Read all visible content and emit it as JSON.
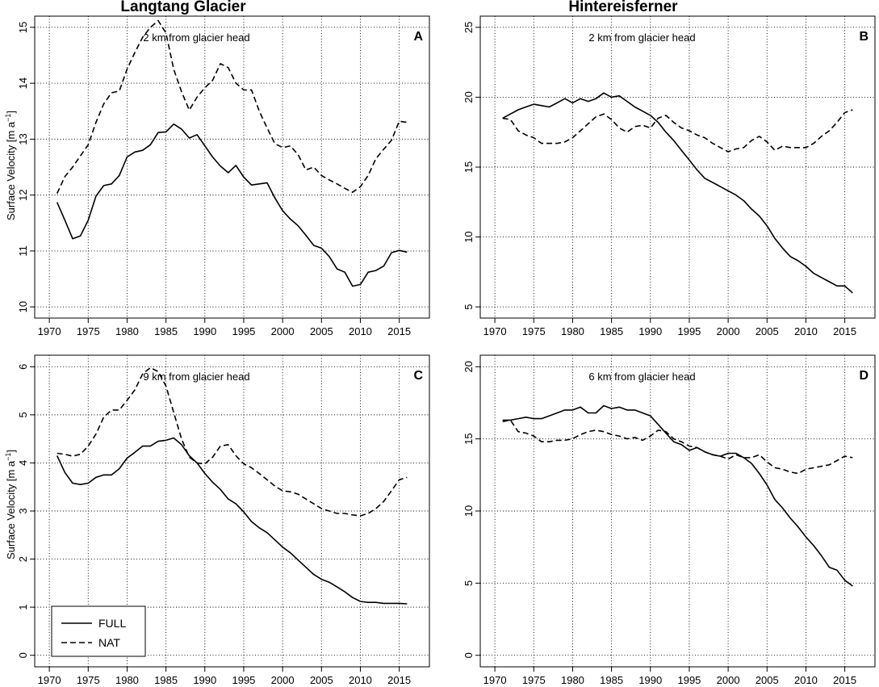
{
  "figure": {
    "column_titles": [
      "Langtang Glacier",
      "Hintereisferner"
    ],
    "ylabel_main": "Surface Velocity [m a",
    "ylabel_sup": "−1",
    "ylabel_end": "]"
  },
  "legend": {
    "entries": [
      "FULL",
      "NAT"
    ]
  },
  "chart_data": [
    {
      "type": "line",
      "panel": "A",
      "annotation": "2 km from glacier head",
      "xlim": [
        1970,
        2017
      ],
      "ylim": [
        10,
        15
      ],
      "xticks": [
        1970,
        1975,
        1980,
        1985,
        1990,
        1995,
        2000,
        2005,
        2010,
        2015
      ],
      "yticks": [
        10,
        11,
        12,
        13,
        14,
        15
      ],
      "grid": true,
      "x": [
        1971,
        1972,
        1973,
        1974,
        1975,
        1976,
        1977,
        1978,
        1979,
        1980,
        1981,
        1982,
        1983,
        1984,
        1985,
        1986,
        1987,
        1988,
        1989,
        1990,
        1991,
        1992,
        1993,
        1994,
        1995,
        1996,
        1997,
        1998,
        1999,
        2000,
        2001,
        2002,
        2003,
        2004,
        2005,
        2006,
        2007,
        2008,
        2009,
        2010,
        2011,
        2012,
        2013,
        2014,
        2015,
        2016
      ],
      "series": [
        {
          "name": "FULL",
          "dash": "solid",
          "values": [
            11.87,
            11.55,
            11.22,
            11.27,
            11.55,
            11.98,
            12.17,
            12.2,
            12.35,
            12.68,
            12.77,
            12.8,
            12.9,
            13.12,
            13.13,
            13.27,
            13.18,
            13.02,
            13.08,
            12.88,
            12.68,
            12.52,
            12.4,
            12.53,
            12.32,
            12.18,
            12.2,
            12.22,
            11.95,
            11.72,
            11.57,
            11.45,
            11.28,
            11.1,
            11.05,
            10.9,
            10.68,
            10.62,
            10.37,
            10.4,
            10.62,
            10.65,
            10.73,
            10.97,
            11.01,
            10.98
          ]
        },
        {
          "name": "NAT",
          "dash": "dashed",
          "values": [
            12.03,
            12.33,
            12.5,
            12.7,
            12.9,
            13.3,
            13.63,
            13.83,
            13.86,
            14.25,
            14.55,
            14.82,
            15.0,
            15.12,
            14.9,
            14.25,
            13.85,
            13.52,
            13.75,
            13.92,
            14.05,
            14.35,
            14.28,
            14.0,
            13.88,
            13.88,
            13.5,
            13.2,
            12.92,
            12.85,
            12.88,
            12.72,
            12.45,
            12.5,
            12.35,
            12.27,
            12.2,
            12.12,
            12.05,
            12.15,
            12.35,
            12.65,
            12.82,
            12.98,
            13.32,
            13.3
          ]
        }
      ]
    },
    {
      "type": "line",
      "panel": "B",
      "annotation": "2 km from glacier head",
      "xlim": [
        1970,
        2017
      ],
      "ylim": [
        5,
        25
      ],
      "xticks": [
        1970,
        1975,
        1980,
        1985,
        1990,
        1995,
        2000,
        2005,
        2010,
        2015
      ],
      "yticks": [
        5,
        10,
        15,
        20,
        25
      ],
      "grid": true,
      "x": [
        1971,
        1972,
        1973,
        1974,
        1975,
        1976,
        1977,
        1978,
        1979,
        1980,
        1981,
        1982,
        1983,
        1984,
        1985,
        1986,
        1987,
        1988,
        1989,
        1990,
        1991,
        1992,
        1993,
        1994,
        1995,
        1996,
        1997,
        1998,
        1999,
        2000,
        2001,
        2002,
        2003,
        2004,
        2005,
        2006,
        2007,
        2008,
        2009,
        2010,
        2011,
        2012,
        2013,
        2014,
        2015,
        2016
      ],
      "series": [
        {
          "name": "FULL",
          "dash": "solid",
          "values": [
            18.5,
            18.8,
            19.1,
            19.3,
            19.5,
            19.4,
            19.3,
            19.6,
            19.9,
            19.6,
            19.9,
            19.7,
            19.9,
            20.3,
            20.0,
            20.1,
            19.7,
            19.3,
            19.0,
            18.7,
            18.2,
            17.5,
            16.9,
            16.2,
            15.5,
            14.8,
            14.2,
            13.9,
            13.6,
            13.3,
            13.0,
            12.6,
            12.0,
            11.5,
            10.8,
            9.9,
            9.2,
            8.6,
            8.3,
            7.9,
            7.4,
            7.1,
            6.8,
            6.5,
            6.5,
            6.0
          ]
        },
        {
          "name": "NAT",
          "dash": "dashed",
          "values": [
            18.5,
            18.4,
            17.6,
            17.3,
            17.1,
            16.7,
            16.7,
            16.7,
            16.8,
            17.1,
            17.6,
            18.1,
            18.6,
            18.8,
            18.4,
            17.8,
            17.5,
            17.9,
            18.0,
            17.8,
            18.5,
            18.7,
            18.2,
            17.8,
            17.6,
            17.3,
            17.1,
            16.7,
            16.4,
            16.1,
            16.3,
            16.4,
            16.9,
            17.2,
            16.8,
            16.2,
            16.5,
            16.4,
            16.4,
            16.4,
            16.7,
            17.2,
            17.6,
            18.2,
            18.9,
            19.1
          ]
        }
      ]
    },
    {
      "type": "line",
      "panel": "C",
      "annotation": "9 km from glacier head",
      "xlim": [
        1970,
        2017
      ],
      "ylim": [
        0,
        6
      ],
      "xticks": [
        1970,
        1975,
        1980,
        1985,
        1990,
        1995,
        2000,
        2005,
        2010,
        2015
      ],
      "yticks": [
        0,
        1,
        2,
        3,
        4,
        5,
        6
      ],
      "grid": true,
      "x": [
        1971,
        1972,
        1973,
        1974,
        1975,
        1976,
        1977,
        1978,
        1979,
        1980,
        1981,
        1982,
        1983,
        1984,
        1985,
        1986,
        1987,
        1988,
        1989,
        1990,
        1991,
        1992,
        1993,
        1994,
        1995,
        1996,
        1997,
        1998,
        1999,
        2000,
        2001,
        2002,
        2003,
        2004,
        2005,
        2006,
        2007,
        2008,
        2009,
        2010,
        2011,
        2012,
        2013,
        2014,
        2015,
        2016
      ],
      "series": [
        {
          "name": "FULL",
          "dash": "solid",
          "values": [
            4.15,
            3.8,
            3.58,
            3.55,
            3.58,
            3.7,
            3.75,
            3.75,
            3.88,
            4.1,
            4.22,
            4.35,
            4.35,
            4.45,
            4.47,
            4.52,
            4.38,
            4.15,
            4.0,
            3.78,
            3.6,
            3.45,
            3.25,
            3.15,
            2.98,
            2.78,
            2.65,
            2.55,
            2.4,
            2.25,
            2.13,
            1.98,
            1.83,
            1.68,
            1.58,
            1.52,
            1.42,
            1.32,
            1.2,
            1.12,
            1.1,
            1.1,
            1.08,
            1.08,
            1.08,
            1.07
          ]
        },
        {
          "name": "NAT",
          "dash": "dashed",
          "values": [
            4.2,
            4.18,
            4.14,
            4.18,
            4.35,
            4.6,
            4.95,
            5.1,
            5.1,
            5.3,
            5.52,
            5.85,
            5.98,
            5.9,
            5.6,
            5.05,
            4.5,
            4.12,
            4.0,
            3.98,
            4.12,
            4.35,
            4.38,
            4.15,
            3.98,
            3.9,
            3.78,
            3.65,
            3.52,
            3.42,
            3.4,
            3.35,
            3.25,
            3.15,
            3.05,
            3.0,
            2.95,
            2.95,
            2.92,
            2.9,
            2.95,
            3.05,
            3.2,
            3.42,
            3.65,
            3.7
          ]
        }
      ]
    },
    {
      "type": "line",
      "panel": "D",
      "annotation": "6 km from glacier head",
      "xlim": [
        1970,
        2017
      ],
      "ylim": [
        0,
        20
      ],
      "xticks": [
        1970,
        1975,
        1980,
        1985,
        1990,
        1995,
        2000,
        2005,
        2010,
        2015
      ],
      "yticks": [
        0,
        5,
        10,
        15,
        20
      ],
      "grid": true,
      "x": [
        1971,
        1972,
        1973,
        1974,
        1975,
        1976,
        1977,
        1978,
        1979,
        1980,
        1981,
        1982,
        1983,
        1984,
        1985,
        1986,
        1987,
        1988,
        1989,
        1990,
        1991,
        1992,
        1993,
        1994,
        1995,
        1996,
        1997,
        1998,
        1999,
        2000,
        2001,
        2002,
        2003,
        2004,
        2005,
        2006,
        2007,
        2008,
        2009,
        2010,
        2011,
        2012,
        2013,
        2014,
        2015,
        2016
      ],
      "series": [
        {
          "name": "FULL",
          "dash": "solid",
          "values": [
            16.3,
            16.3,
            16.4,
            16.5,
            16.4,
            16.4,
            16.6,
            16.8,
            17.0,
            17.0,
            17.2,
            16.8,
            16.8,
            17.3,
            17.1,
            17.2,
            17.0,
            17.0,
            16.8,
            16.6,
            16.0,
            15.4,
            14.8,
            14.6,
            14.2,
            14.4,
            14.1,
            13.9,
            13.8,
            14.0,
            14.0,
            13.7,
            13.3,
            12.6,
            11.8,
            10.8,
            10.2,
            9.5,
            8.9,
            8.2,
            7.6,
            6.9,
            6.1,
            5.9,
            5.2,
            4.8
          ]
        },
        {
          "name": "NAT",
          "dash": "dashed",
          "values": [
            16.2,
            16.3,
            15.5,
            15.4,
            15.2,
            14.8,
            14.8,
            14.9,
            14.9,
            15.0,
            15.3,
            15.5,
            15.6,
            15.5,
            15.3,
            15.2,
            15.0,
            15.1,
            14.9,
            15.2,
            15.6,
            15.5,
            15.0,
            14.8,
            14.5,
            14.4,
            14.1,
            13.9,
            13.8,
            13.6,
            13.9,
            13.7,
            13.7,
            13.9,
            13.4,
            13.0,
            12.9,
            12.7,
            12.6,
            12.9,
            13.0,
            13.1,
            13.2,
            13.5,
            13.8,
            13.7
          ]
        }
      ]
    }
  ]
}
